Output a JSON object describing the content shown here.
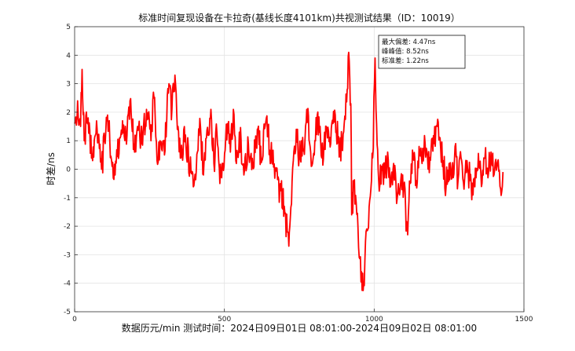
{
  "chart_data": {
    "type": "line",
    "title": "标准时间复现设备在卡拉奇(基线长度4101km)共视测试结果（ID：10019）",
    "xlabel": "数据历元/min  测试时间：2024日09日01日  08:01:00-2024日09日02日  08:01:00",
    "ylabel": "时差/ns",
    "xlim": [
      0,
      1500
    ],
    "ylim": [
      -5,
      5
    ],
    "xticks": [
      "0",
      "500",
      "1000",
      "1500"
    ],
    "yticks": [
      "-5",
      "-4",
      "-3",
      "-2",
      "-1",
      "0",
      "1",
      "2",
      "3",
      "4",
      "5"
    ],
    "grid": true,
    "series": [
      {
        "color": "#ff0000",
        "anchors": [
          [
            0,
            1.6
          ],
          [
            10,
            2.4
          ],
          [
            20,
            1.5
          ],
          [
            25,
            3.5
          ],
          [
            32,
            1.0
          ],
          [
            45,
            1.8
          ],
          [
            60,
            0.3
          ],
          [
            75,
            1.4
          ],
          [
            90,
            0.0
          ],
          [
            100,
            1.0
          ],
          [
            110,
            1.9
          ],
          [
            125,
            0.1
          ],
          [
            135,
            -0.2
          ],
          [
            150,
            1.1
          ],
          [
            160,
            1.7
          ],
          [
            175,
            1.2
          ],
          [
            185,
            2.4
          ],
          [
            200,
            0.6
          ],
          [
            210,
            1.5
          ],
          [
            225,
            0.9
          ],
          [
            240,
            2.1
          ],
          [
            255,
            1.0
          ],
          [
            265,
            2.5
          ],
          [
            275,
            0.3
          ],
          [
            285,
            1.0
          ],
          [
            300,
            0.5
          ],
          [
            315,
            3.0
          ],
          [
            325,
            2.1
          ],
          [
            335,
            3.3
          ],
          [
            345,
            1.5
          ],
          [
            355,
            0.4
          ],
          [
            370,
            1.2
          ],
          [
            385,
            0.1
          ],
          [
            400,
            -0.4
          ],
          [
            410,
            0.6
          ],
          [
            420,
            1.5
          ],
          [
            430,
            -0.2
          ],
          [
            440,
            1.1
          ],
          [
            455,
            2.1
          ],
          [
            465,
            0.2
          ],
          [
            475,
            1.3
          ],
          [
            485,
            -0.5
          ],
          [
            495,
            0.2
          ],
          [
            510,
            1.6
          ],
          [
            520,
            0.6
          ],
          [
            530,
            2.1
          ],
          [
            540,
            0.2
          ],
          [
            550,
            1.3
          ],
          [
            565,
            -0.2
          ],
          [
            580,
            0.9
          ],
          [
            595,
            0.1
          ],
          [
            610,
            1.4
          ],
          [
            625,
            0.3
          ],
          [
            640,
            1.8
          ],
          [
            655,
            0.5
          ],
          [
            670,
            0.0
          ],
          [
            685,
            -0.7
          ],
          [
            700,
            -1.3
          ],
          [
            710,
            -2.2
          ],
          [
            715,
            -2.7
          ],
          [
            720,
            -1.7
          ],
          [
            730,
            0.3
          ],
          [
            740,
            1.4
          ],
          [
            750,
            0.4
          ],
          [
            765,
            0.7
          ],
          [
            775,
            2.1
          ],
          [
            790,
            0.1
          ],
          [
            800,
            0.5
          ],
          [
            810,
            1.9
          ],
          [
            825,
            0.4
          ],
          [
            840,
            1.5
          ],
          [
            855,
            0.9
          ],
          [
            870,
            1.9
          ],
          [
            885,
            0.5
          ],
          [
            900,
            1.6
          ],
          [
            910,
            2.8
          ],
          [
            915,
            4.1
          ],
          [
            922,
            2.3
          ],
          [
            925,
            -1.6
          ],
          [
            932,
            -0.5
          ],
          [
            940,
            -1.2
          ],
          [
            950,
            -3.1
          ],
          [
            958,
            -3.6
          ],
          [
            965,
            -4.0
          ],
          [
            975,
            -2.1
          ],
          [
            985,
            -1.1
          ],
          [
            995,
            0.4
          ],
          [
            1003,
            3.9
          ],
          [
            1008,
            1.6
          ],
          [
            1015,
            -0.4
          ],
          [
            1025,
            0.1
          ],
          [
            1035,
            -0.3
          ],
          [
            1045,
            0.6
          ],
          [
            1055,
            -0.6
          ],
          [
            1065,
            0.2
          ],
          [
            1075,
            -1.2
          ],
          [
            1085,
            -0.9
          ],
          [
            1095,
            -0.2
          ],
          [
            1105,
            -1.4
          ],
          [
            1112,
            -2.3
          ],
          [
            1120,
            -0.5
          ],
          [
            1130,
            0.4
          ],
          [
            1140,
            -0.4
          ],
          [
            1150,
            0.8
          ],
          [
            1160,
            0.2
          ],
          [
            1170,
            0.9
          ],
          [
            1180,
            0.0
          ],
          [
            1190,
            0.7
          ],
          [
            1200,
            0.9
          ],
          [
            1210,
            1.5
          ],
          [
            1220,
            1.1
          ],
          [
            1230,
            0.3
          ],
          [
            1240,
            -0.6
          ],
          [
            1250,
            0.2
          ],
          [
            1260,
            -0.3
          ],
          [
            1270,
            0.8
          ],
          [
            1280,
            -0.4
          ],
          [
            1290,
            0.4
          ],
          [
            1300,
            -0.7
          ],
          [
            1310,
            0.3
          ],
          [
            1320,
            -0.4
          ],
          [
            1330,
            -0.9
          ],
          [
            1340,
            -0.3
          ],
          [
            1350,
            0.1
          ],
          [
            1360,
            -0.5
          ],
          [
            1370,
            0.4
          ],
          [
            1380,
            -0.3
          ],
          [
            1390,
            0.6
          ],
          [
            1400,
            -0.2
          ],
          [
            1410,
            0.1
          ],
          [
            1420,
            -0.6
          ],
          [
            1430,
            -0.1
          ]
        ]
      }
    ],
    "stats": [
      "最大偏差: 4.47ns",
      "峰峰值: 8.52ns",
      "标准差: 1.22ns"
    ],
    "stats_box_position": "top-right"
  }
}
